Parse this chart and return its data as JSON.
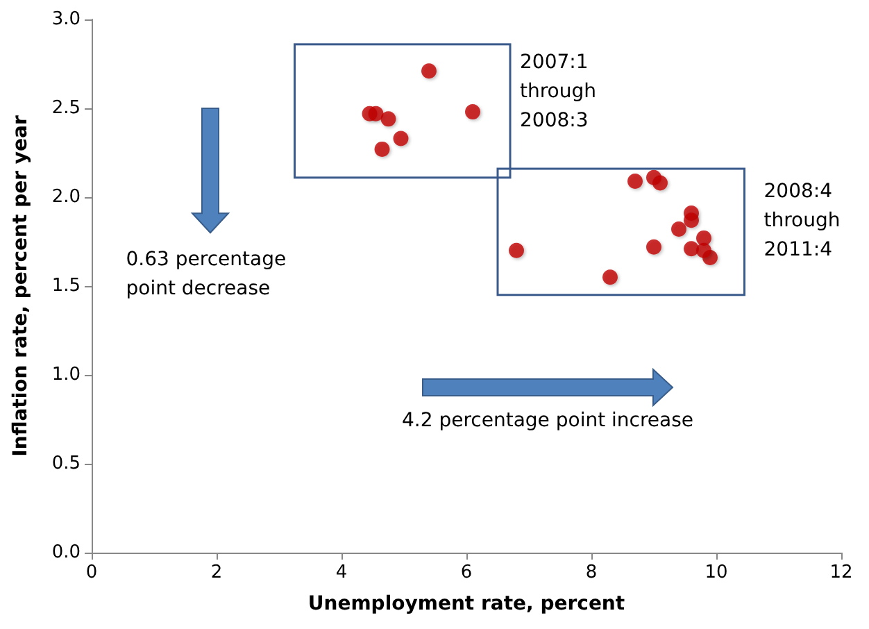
{
  "chart_data": {
    "type": "scatter",
    "xlabel": "Unemployment rate, percent",
    "ylabel": "Inflation rate, percent per year",
    "xlim": [
      0,
      12
    ],
    "xticks": [
      0,
      2,
      4,
      6,
      8,
      10,
      12
    ],
    "ylim": [
      0,
      3
    ],
    "yticks": [
      {
        "value": 0,
        "label": "0.0"
      },
      {
        "value": 0.5,
        "label": "0.5"
      },
      {
        "value": 1,
        "label": "1.0"
      },
      {
        "value": 1.5,
        "label": "1.5"
      },
      {
        "value": 2,
        "label": "2.0"
      },
      {
        "value": 2.5,
        "label": "2.5"
      },
      {
        "value": 3,
        "label": "3.0"
      }
    ],
    "grid": false,
    "marker": "circle",
    "series": [
      {
        "color": "#c00000",
        "x": [
          5.4,
          4.45,
          4.55,
          4.75,
          4.65,
          4.95,
          6.1
        ],
        "values": [
          2.71,
          2.47,
          2.47,
          2.44,
          2.27,
          2.33,
          2.48
        ]
      },
      {
        "color": "#c00000",
        "x": [
          6.8,
          8.3,
          8.7,
          9.0,
          9.1,
          9.0,
          9.4,
          9.6,
          9.6,
          9.6,
          9.8,
          9.9,
          9.8
        ],
        "values": [
          1.7,
          1.55,
          2.09,
          2.11,
          2.08,
          1.72,
          1.82,
          1.91,
          1.87,
          1.71,
          1.77,
          1.66,
          1.7
        ]
      }
    ],
    "annotations": [
      "2007:1\nthrough\n2008:3",
      "2008:4\nthrough\n2011:4",
      "0.63 percentage\npoint decrease",
      "4.2 percentage point increase"
    ]
  }
}
